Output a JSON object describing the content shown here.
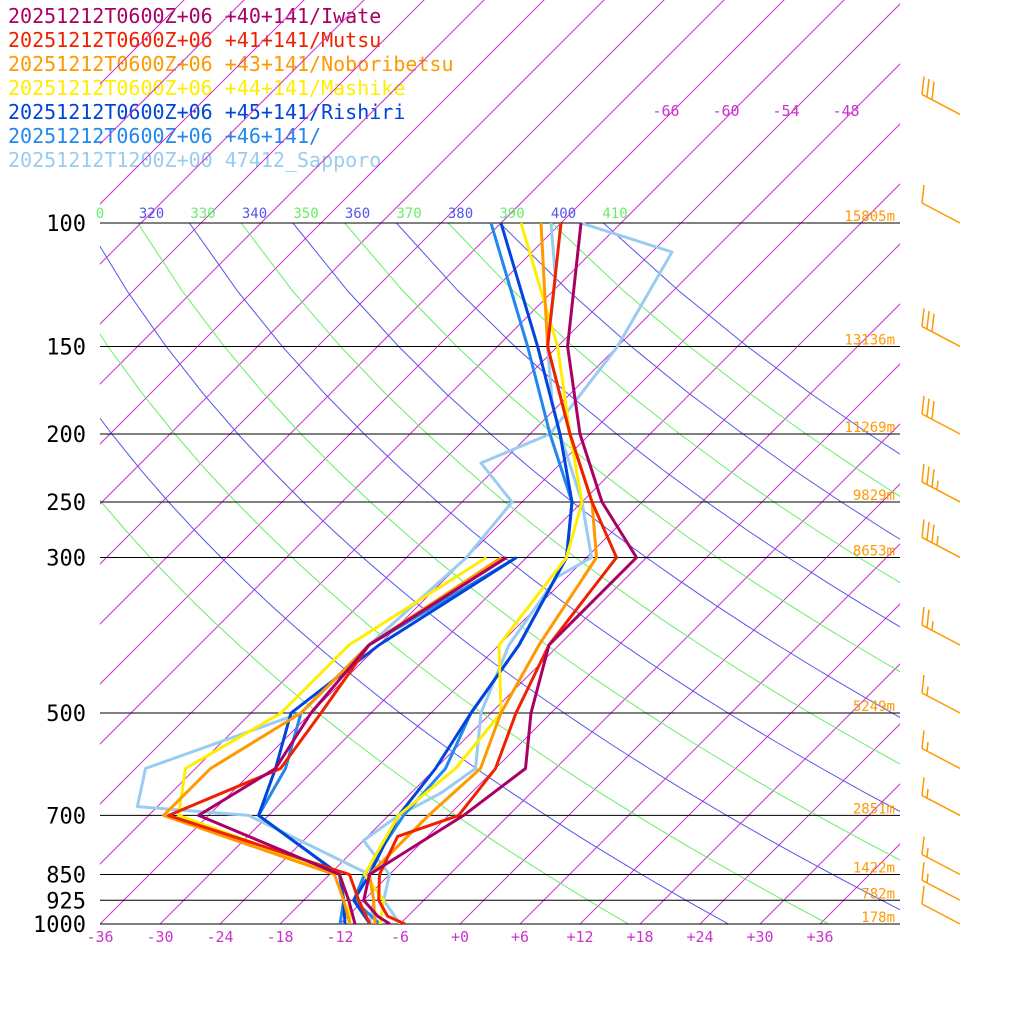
{
  "chart_data": {
    "type": "line",
    "subtype": "skew-t log-p sounding",
    "x_axis": {
      "unit": "degC",
      "ticks": [
        "-36",
        "-30",
        "-24",
        "-18",
        "-12",
        "-6",
        "+0",
        "+6",
        "+12",
        "+18",
        "+24",
        "+30",
        "+36"
      ],
      "range": [
        -40,
        40
      ]
    },
    "y_axis": {
      "unit": "hPa",
      "scale": "log",
      "range": [
        1000,
        100
      ],
      "labels": [
        "100",
        "150",
        "200",
        "250",
        "300",
        "500",
        "700",
        "850",
        "925",
        "1000"
      ]
    },
    "heights": [
      {
        "p": 100,
        "label": "15805m"
      },
      {
        "p": 150,
        "label": "13136m"
      },
      {
        "p": 200,
        "label": "11269m"
      },
      {
        "p": 250,
        "label": "9829m"
      },
      {
        "p": 300,
        "label": "8653m"
      },
      {
        "p": 500,
        "label": "5249m"
      },
      {
        "p": 700,
        "label": "2851m"
      },
      {
        "p": 850,
        "label": "1422m"
      },
      {
        "p": 925,
        "label": "782m"
      },
      {
        "p": 1000,
        "label": "178m"
      }
    ],
    "theta_e_labels": [
      "0",
      "320",
      "330",
      "340",
      "350",
      "360",
      "370",
      "380",
      "390",
      "400",
      "410"
    ],
    "mixing_ratio_labels": [
      "-66",
      "-60",
      "-54",
      "-48"
    ],
    "series": [
      {
        "name": "20251212T0600Z+06 +40+141/Iwate",
        "color": "#aa0066",
        "temp": [
          [
            1000,
            -7
          ],
          [
            975,
            -9
          ],
          [
            925,
            -12
          ],
          [
            850,
            -14
          ],
          [
            700,
            -10.5
          ],
          [
            600,
            -9
          ],
          [
            500,
            -14
          ],
          [
            400,
            -19
          ],
          [
            300,
            -19
          ],
          [
            250,
            -28
          ],
          [
            200,
            -37
          ],
          [
            150,
            -47
          ],
          [
            100,
            -58
          ]
        ],
        "dewp": [
          [
            1000,
            -10.5
          ],
          [
            925,
            -13.5
          ],
          [
            850,
            -17
          ],
          [
            700,
            -37
          ],
          [
            600,
            -34
          ],
          [
            500,
            -36
          ],
          [
            400,
            -37
          ],
          [
            300,
            -32
          ]
        ]
      },
      {
        "name": "20251212T0600Z+06 +41+141/Mutsu",
        "color": "#ee2200",
        "temp": [
          [
            1000,
            -5.5
          ],
          [
            975,
            -8
          ],
          [
            925,
            -10.5
          ],
          [
            850,
            -13
          ],
          [
            750,
            -15
          ],
          [
            700,
            -11
          ],
          [
            600,
            -12
          ],
          [
            500,
            -15.5
          ],
          [
            400,
            -19
          ],
          [
            300,
            -21
          ],
          [
            250,
            -29
          ],
          [
            200,
            -38
          ],
          [
            150,
            -49
          ],
          [
            100,
            -60
          ]
        ],
        "dewp": [
          [
            1000,
            -9
          ],
          [
            925,
            -12.5
          ],
          [
            850,
            -16
          ],
          [
            700,
            -40
          ],
          [
            600,
            -33.5
          ],
          [
            500,
            -35
          ],
          [
            400,
            -37
          ],
          [
            300,
            -32
          ]
        ]
      },
      {
        "name": "20251212T0600Z+06 +43+141/Noboribetsu",
        "color": "#ff9900",
        "temp": [
          [
            1000,
            -8.5
          ],
          [
            925,
            -11
          ],
          [
            850,
            -14
          ],
          [
            700,
            -14
          ],
          [
            600,
            -13.5
          ],
          [
            500,
            -17
          ],
          [
            400,
            -20
          ],
          [
            300,
            -23
          ],
          [
            250,
            -29
          ],
          [
            200,
            -38
          ],
          [
            150,
            -49
          ],
          [
            100,
            -62
          ]
        ],
        "dewp": [
          [
            1000,
            -11
          ],
          [
            925,
            -14
          ],
          [
            850,
            -17.5
          ],
          [
            700,
            -40.5
          ],
          [
            600,
            -40.5
          ],
          [
            500,
            -37
          ],
          [
            400,
            -37
          ],
          [
            300,
            -32.5
          ]
        ]
      },
      {
        "name": "20251212T0600Z+06 +44+141/Mashike",
        "color": "#ffee00",
        "temp": [
          [
            1000,
            -8
          ],
          [
            925,
            -10
          ],
          [
            850,
            -14.5
          ],
          [
            700,
            -17
          ],
          [
            600,
            -16
          ],
          [
            500,
            -17
          ],
          [
            400,
            -24
          ],
          [
            300,
            -26
          ],
          [
            250,
            -30
          ],
          [
            200,
            -38
          ],
          [
            150,
            -48
          ],
          [
            100,
            -64
          ]
        ],
        "dewp": [
          [
            1000,
            -11
          ],
          [
            925,
            -13.5
          ],
          [
            850,
            -17
          ],
          [
            700,
            -39
          ],
          [
            600,
            -43
          ],
          [
            500,
            -39
          ],
          [
            400,
            -39
          ],
          [
            300,
            -34
          ]
        ]
      },
      {
        "name": "20251212T0600Z+06 +45+141/Rishiri",
        "color": "#0044dd",
        "temp": [
          [
            1000,
            -9
          ],
          [
            925,
            -13
          ],
          [
            850,
            -14
          ],
          [
            700,
            -17
          ],
          [
            600,
            -18
          ],
          [
            500,
            -20
          ],
          [
            400,
            -22
          ],
          [
            300,
            -26
          ],
          [
            250,
            -31
          ],
          [
            200,
            -39
          ],
          [
            150,
            -50
          ],
          [
            100,
            -66
          ]
        ],
        "dewp": [
          [
            1000,
            -11.5
          ],
          [
            925,
            -14
          ],
          [
            850,
            -17
          ],
          [
            700,
            -31
          ],
          [
            600,
            -34
          ],
          [
            500,
            -38
          ],
          [
            400,
            -36
          ],
          [
            300,
            -31
          ]
        ]
      },
      {
        "name": "20251212T0600Z+06 +46+141/",
        "color": "#2288ee",
        "temp": [
          [
            1000,
            -8
          ],
          [
            925,
            -13
          ],
          [
            850,
            -14.5
          ],
          [
            700,
            -16.5
          ],
          [
            600,
            -17
          ],
          [
            500,
            -20
          ],
          [
            400,
            -22
          ],
          [
            300,
            -26
          ],
          [
            250,
            -31
          ],
          [
            200,
            -40
          ],
          [
            150,
            -51
          ],
          [
            100,
            -67
          ]
        ],
        "dewp": [
          [
            1000,
            -12
          ],
          [
            925,
            -14
          ],
          [
            850,
            -17
          ],
          [
            700,
            -31
          ],
          [
            600,
            -33
          ],
          [
            500,
            -37
          ],
          [
            400,
            -37
          ],
          [
            300,
            -31
          ]
        ]
      },
      {
        "name": "20251212T1200Z+00 47412_Sapporo",
        "color": "#99ccf0",
        "temp": [
          [
            1000,
            -6
          ],
          [
            925,
            -10
          ],
          [
            850,
            -12
          ],
          [
            760,
            -18
          ],
          [
            700,
            -17
          ],
          [
            650,
            -15
          ],
          [
            600,
            -14
          ],
          [
            500,
            -19
          ],
          [
            400,
            -23
          ],
          [
            320,
            -25
          ],
          [
            300,
            -23.5
          ],
          [
            250,
            -30
          ],
          [
            200,
            -39
          ],
          [
            180,
            -43
          ],
          [
            150,
            -49
          ],
          [
            120,
            -55
          ],
          [
            100,
            -61
          ]
        ],
        "dewp": [
          [
            1000,
            -9
          ],
          [
            925,
            -11
          ],
          [
            850,
            -14
          ],
          [
            700,
            -32
          ],
          [
            680,
            -44
          ],
          [
            600,
            -47
          ],
          [
            500,
            -37
          ],
          [
            400,
            -37
          ],
          [
            300,
            -36
          ],
          [
            250,
            -37
          ],
          [
            220,
            -44
          ],
          [
            200,
            -40
          ],
          [
            150,
            -42
          ],
          [
            110,
            -46
          ],
          [
            100,
            -58
          ]
        ]
      }
    ],
    "wind_barbs": [
      {
        "p": 1000,
        "barbs": 1
      },
      {
        "p": 925,
        "barbs": 1.5
      },
      {
        "p": 850,
        "barbs": 1.5
      },
      {
        "p": 700,
        "barbs": 1.5
      },
      {
        "p": 600,
        "barbs": 1.5
      },
      {
        "p": 500,
        "barbs": 1.5
      },
      {
        "p": 400,
        "barbs": 2.5
      },
      {
        "p": 300,
        "barbs": 3.5
      },
      {
        "p": 250,
        "barbs": 3.5
      },
      {
        "p": 200,
        "barbs": 3
      },
      {
        "p": 150,
        "barbs": 3
      },
      {
        "p": 100,
        "barbs": 1
      },
      {
        "p": 70,
        "barbs": 3
      }
    ],
    "colors": {
      "isobar": "#000000",
      "isotherm": "#cc33cc",
      "theta_e_even": "#5555ee",
      "theta_e_odd": "#66ee66",
      "height_label": "#ff9900",
      "barb": "#ff9900"
    }
  }
}
